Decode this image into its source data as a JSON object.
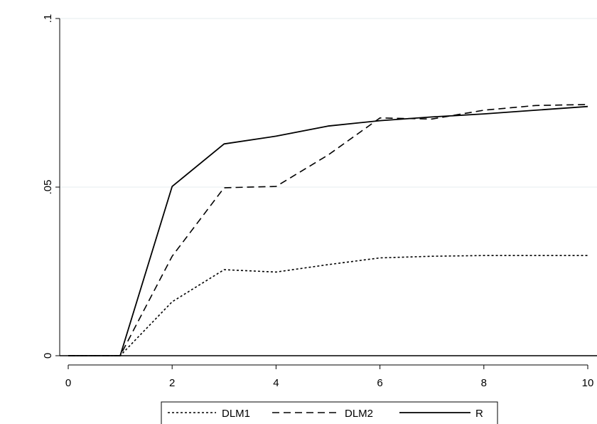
{
  "chart_data": {
    "type": "line",
    "title": "",
    "xlabel": "",
    "ylabel": "",
    "xlim": [
      0,
      10
    ],
    "ylim": [
      0,
      0.1
    ],
    "x_ticks": [
      0,
      2,
      4,
      6,
      8,
      10
    ],
    "x_tick_labels": [
      "0",
      "2",
      "4",
      "6",
      "8",
      "10"
    ],
    "y_ticks": [
      0,
      0.05,
      0.1
    ],
    "y_tick_labels": [
      "0",
      ".05",
      ".1"
    ],
    "grid": "horizontal",
    "legend_position": "bottom",
    "x": [
      0,
      1,
      2,
      3,
      4,
      5,
      6,
      7,
      8,
      9,
      10
    ],
    "series": [
      {
        "name": "DLM1",
        "dash": "dotted",
        "values": [
          0,
          0,
          0.016,
          0.0255,
          0.0248,
          0.027,
          0.029,
          0.0295,
          0.0297,
          0.0297,
          0.0297
        ]
      },
      {
        "name": "DLM2",
        "dash": "dashed",
        "values": [
          0,
          0,
          0.0295,
          0.0498,
          0.0502,
          0.0595,
          0.0705,
          0.0702,
          0.0728,
          0.0742,
          0.0745
        ]
      },
      {
        "name": "R",
        "dash": "solid",
        "values": [
          0,
          0,
          0.0502,
          0.0628,
          0.0651,
          0.0681,
          0.0697,
          0.0708,
          0.0717,
          0.0728,
          0.0739
        ]
      }
    ]
  }
}
